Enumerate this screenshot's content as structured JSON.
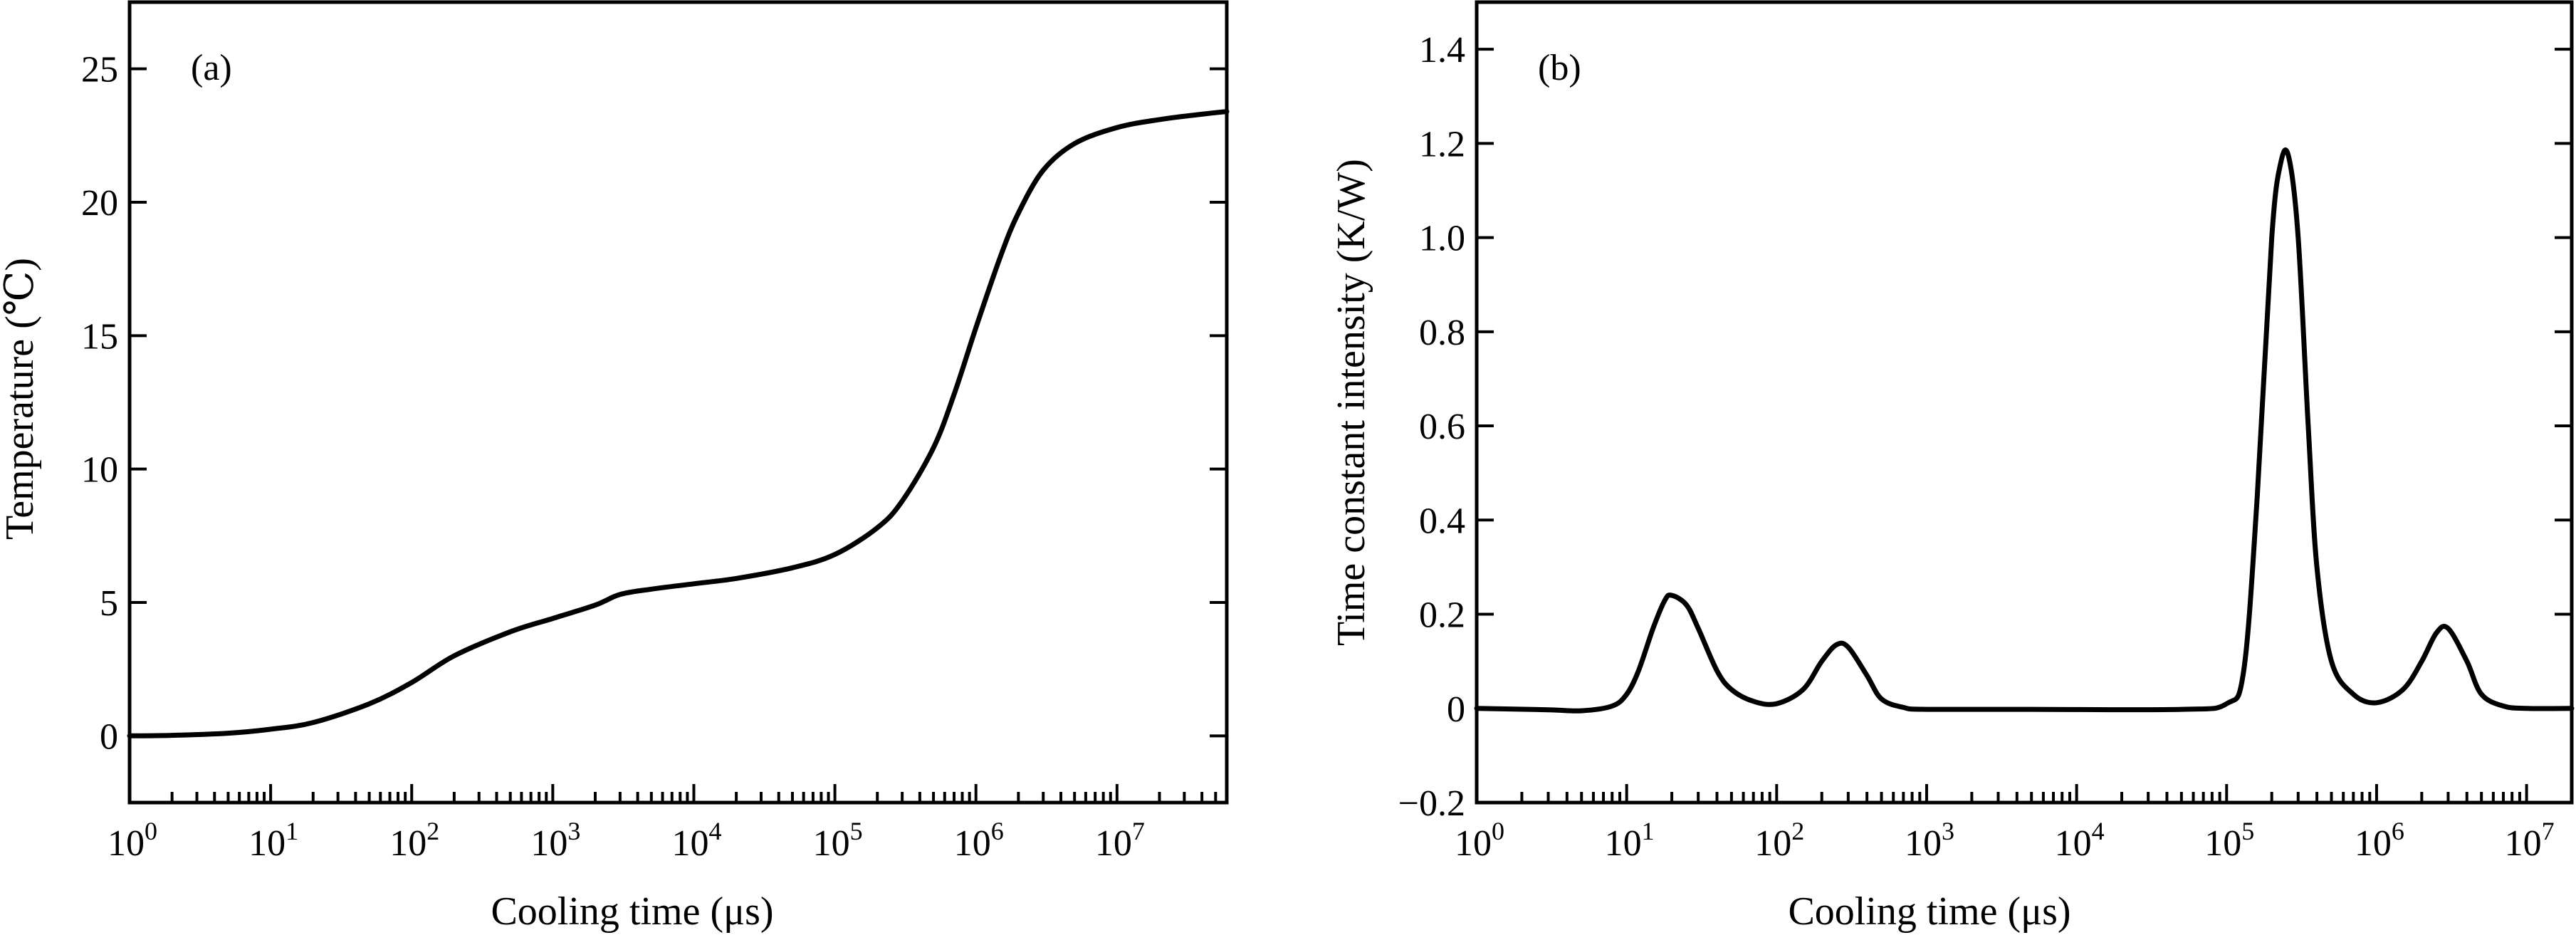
{
  "chart_data": [
    {
      "type": "line",
      "panel_label": "(a)",
      "xlabel": "Cooling time (μs)",
      "ylabel": "Temperature (℃)",
      "x_scale": "log",
      "xlim": [
        1,
        60000000
      ],
      "ylim": [
        -2.5,
        27.5
      ],
      "x_ticks": [
        {
          "value": 1,
          "base": "10",
          "exp": "0"
        },
        {
          "value": 10,
          "base": "10",
          "exp": "1"
        },
        {
          "value": 100,
          "base": "10",
          "exp": "2"
        },
        {
          "value": 1000,
          "base": "10",
          "exp": "3"
        },
        {
          "value": 10000,
          "base": "10",
          "exp": "4"
        },
        {
          "value": 100000,
          "base": "10",
          "exp": "5"
        },
        {
          "value": 1000000,
          "base": "10",
          "exp": "6"
        },
        {
          "value": 10000000,
          "base": "10",
          "exp": "7"
        }
      ],
      "y_ticks": [
        {
          "value": 0,
          "label": "0"
        },
        {
          "value": 5,
          "label": "5"
        },
        {
          "value": 10,
          "label": "10"
        },
        {
          "value": 15,
          "label": "15"
        },
        {
          "value": 20,
          "label": "20"
        },
        {
          "value": 25,
          "label": "25"
        }
      ],
      "grid": false,
      "series": [
        {
          "x": [
            1,
            2,
            5,
            10,
            20,
            50,
            100,
            200,
            500,
            1000,
            2000,
            3000,
            5000,
            10000,
            20000,
            50000,
            100000,
            200000,
            300000,
            500000,
            700000,
            1000000,
            1500000,
            2000000,
            3000000,
            5000000,
            10000000,
            20000000,
            40000000,
            60000000
          ],
          "y": [
            0.0,
            0.02,
            0.1,
            0.25,
            0.5,
            1.2,
            2.0,
            3.0,
            3.9,
            4.4,
            4.9,
            5.3,
            5.5,
            5.7,
            5.9,
            6.3,
            6.8,
            7.8,
            8.8,
            10.8,
            12.8,
            15.3,
            18.0,
            19.6,
            21.2,
            22.2,
            22.8,
            23.1,
            23.3,
            23.4
          ]
        }
      ]
    },
    {
      "type": "line",
      "panel_label": "(b)",
      "xlabel": "Cooling time (μs)",
      "ylabel": "Time constant intensity (K/W)",
      "x_scale": "log",
      "xlim": [
        1,
        20000000
      ],
      "ylim": [
        -0.2,
        1.5
      ],
      "x_ticks": [
        {
          "value": 1,
          "base": "10",
          "exp": "0"
        },
        {
          "value": 10,
          "base": "10",
          "exp": "1"
        },
        {
          "value": 100,
          "base": "10",
          "exp": "2"
        },
        {
          "value": 1000,
          "base": "10",
          "exp": "3"
        },
        {
          "value": 10000,
          "base": "10",
          "exp": "4"
        },
        {
          "value": 100000,
          "base": "10",
          "exp": "5"
        },
        {
          "value": 1000000,
          "base": "10",
          "exp": "6"
        },
        {
          "value": 10000000,
          "base": "10",
          "exp": "7"
        }
      ],
      "y_ticks": [
        {
          "value": -0.2,
          "label": "−0.2"
        },
        {
          "value": 0,
          "label": "0"
        },
        {
          "value": 0.2,
          "label": "0.2"
        },
        {
          "value": 0.4,
          "label": "0.4"
        },
        {
          "value": 0.6,
          "label": "0.6"
        },
        {
          "value": 0.8,
          "label": "0.8"
        },
        {
          "value": 1.0,
          "label": "1.0"
        },
        {
          "value": 1.2,
          "label": "1.2"
        },
        {
          "value": 1.4,
          "label": "1.4"
        }
      ],
      "grid": false,
      "series": [
        {
          "x": [
            1,
            3,
            5,
            8,
            10,
            12,
            15,
            18,
            20,
            25,
            30,
            40,
            50,
            70,
            100,
            150,
            200,
            250,
            300,
            400,
            500,
            700,
            1000,
            5000,
            50000,
            100000,
            130000,
            160000,
            200000,
            230000,
            260000,
            300000,
            350000,
            400000,
            500000,
            700000,
            1000000,
            1500000,
            2000000,
            2500000,
            3000000,
            4000000,
            5000000,
            7000000,
            10000000,
            20000000
          ],
          "y": [
            0.0,
            -0.003,
            -0.005,
            0.005,
            0.03,
            0.08,
            0.17,
            0.23,
            0.24,
            0.22,
            0.17,
            0.08,
            0.04,
            0.015,
            0.01,
            0.04,
            0.1,
            0.135,
            0.13,
            0.07,
            0.02,
            0.002,
            -0.002,
            -0.002,
            -0.002,
            0.01,
            0.08,
            0.45,
            1.0,
            1.16,
            1.17,
            1.0,
            0.6,
            0.3,
            0.1,
            0.03,
            0.012,
            0.04,
            0.1,
            0.16,
            0.17,
            0.1,
            0.03,
            0.005,
            0.0,
            0.0
          ]
        }
      ]
    }
  ]
}
